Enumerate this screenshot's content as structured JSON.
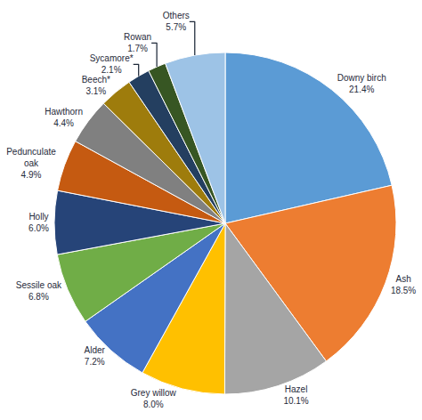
{
  "chart_data": {
    "type": "pie",
    "categories": [
      "Downy birch",
      "Ash",
      "Hazel",
      "Grey willow",
      "Alder",
      "Sessile oak",
      "Holly",
      "Pedunculate\noak",
      "Hawthorn",
      "Beech*",
      "Sycamore*",
      "Rowan",
      "Others"
    ],
    "values": [
      21.4,
      18.5,
      10.1,
      8.0,
      7.2,
      6.8,
      6.0,
      4.9,
      4.4,
      3.1,
      2.1,
      1.7,
      5.7
    ],
    "value_labels": [
      "21.4%",
      "18.5%",
      "10.1%",
      "8.0%",
      "7.2%",
      "6.8%",
      "6.0%",
      "4.9%",
      "4.4%",
      "3.1%",
      "2.1%",
      "1.7%",
      "5.7%"
    ],
    "data_labels": true,
    "colors": [
      "#5B9BD5",
      "#ED7D31",
      "#A5A5A5",
      "#FFC000",
      "#4472C4",
      "#70AD47",
      "#264478",
      "#C55A11",
      "#808080",
      "#9E7C0C",
      "#243F60",
      "#375623",
      "#9DC3E6"
    ]
  }
}
